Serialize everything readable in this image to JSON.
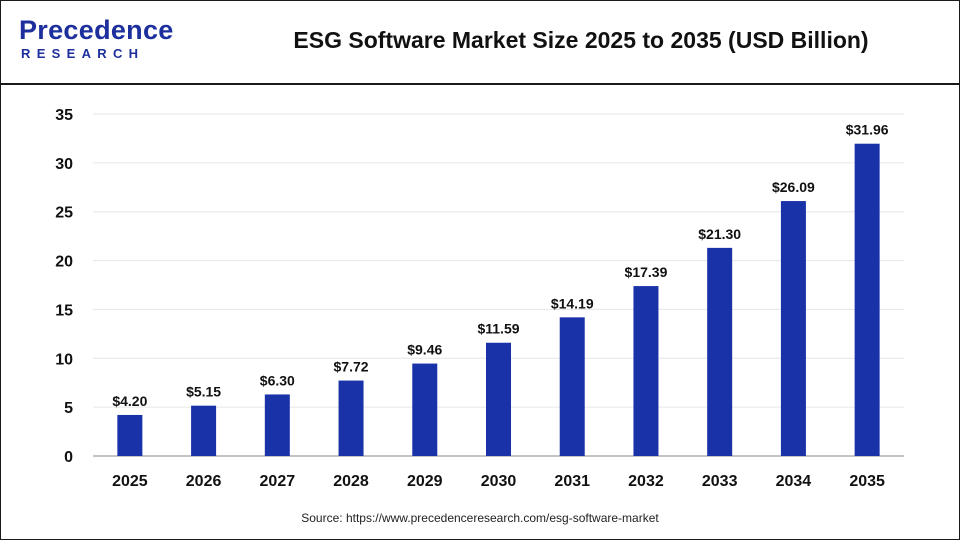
{
  "logo": {
    "top_text": "Precedence",
    "bottom_text": "RESEARCH"
  },
  "header": {
    "title": "ESG Software Market Size 2025 to 2035 (USD Billion)"
  },
  "source": "Source: https://www.precedenceresearch.com/esg-software-market",
  "colors": {
    "bar": "#1932a8",
    "logo": "#1c2f9c",
    "grid": "#e6e6e6",
    "axis": "#888888"
  },
  "chart_data": {
    "type": "bar",
    "title": "ESG Software Market Size 2025 to 2035 (USD Billion)",
    "xlabel": "",
    "ylabel": "",
    "categories": [
      "2025",
      "2026",
      "2027",
      "2028",
      "2029",
      "2030",
      "2031",
      "2032",
      "2033",
      "2034",
      "2035"
    ],
    "values": [
      4.2,
      5.15,
      6.3,
      7.72,
      9.46,
      11.59,
      14.19,
      17.39,
      21.3,
      26.09,
      31.96
    ],
    "data_labels": [
      "$4.20",
      "$5.15",
      "$6.30",
      "$7.72",
      "$9.46",
      "$11.59",
      "$14.19",
      "$17.39",
      "$21.30",
      "$26.09",
      "$31.96"
    ],
    "ylim": [
      0,
      35
    ],
    "yticks": [
      0,
      5,
      10,
      15,
      20,
      25,
      30,
      35
    ],
    "grid": true,
    "legend": "none"
  }
}
